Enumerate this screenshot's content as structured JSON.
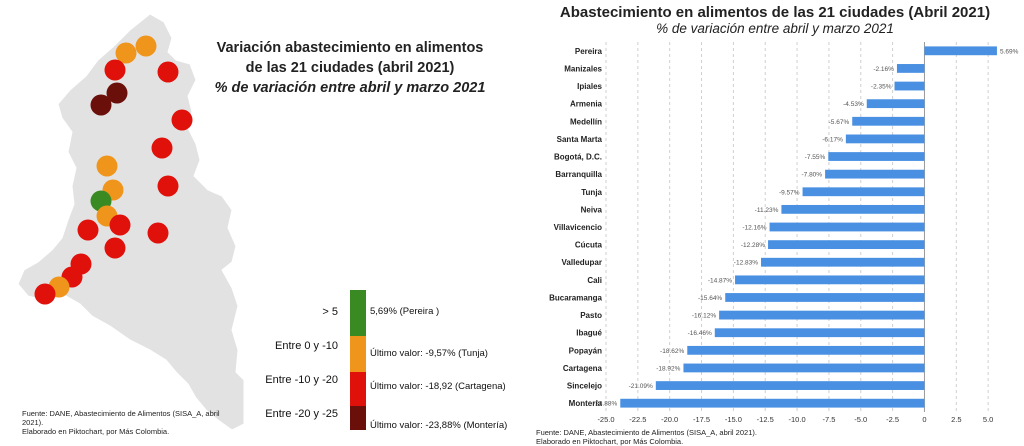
{
  "map": {
    "title_line1": "Variación abastecimiento en alimentos",
    "title_line2": "de las 21 ciudades (abril 2021)",
    "title_line3": "% de variación entre abril y marzo 2021",
    "legend": [
      {
        "range": "> 5",
        "color": "#3a8a23",
        "value": "5,69% (Pereira )"
      },
      {
        "range": "Entre 0 y -10",
        "color": "#f0951c",
        "value": "Último valor:  -9,57% (Tunja)"
      },
      {
        "range": "Entre -10 y -20",
        "color": "#e0100b",
        "value": "Último valor: -18,92 (Cartagena)"
      },
      {
        "range": "Entre -20 y -25",
        "color": "#6b0f0b",
        "value": "Último valor: -23,88% (Montería)"
      }
    ],
    "source_line1": "Fuente: DANE, Abastecimiento de Alimentos (SISA_A, abril",
    "source_line2": "2021).",
    "source_line3": "Elaborado en Piktochart, por Más Colombia.",
    "territory_color": "#e2e2e2",
    "city_dots": [
      {
        "category": 1
      },
      {
        "category": 1
      },
      {
        "category": 2
      },
      {
        "category": 2
      },
      {
        "category": 3
      },
      {
        "category": 3
      },
      {
        "category": 2
      },
      {
        "category": 2
      },
      {
        "category": 1
      },
      {
        "category": 2
      },
      {
        "category": 1
      },
      {
        "category": 0
      },
      {
        "category": 1
      },
      {
        "category": 2
      },
      {
        "category": 2
      },
      {
        "category": 2
      },
      {
        "category": 2
      },
      {
        "category": 2
      },
      {
        "category": 2
      },
      {
        "category": 1
      },
      {
        "category": 2
      }
    ]
  },
  "chart": {
    "source_line1": "Fuente: DANE, Abastecimiento de Alimentos (SISA_A, abril 2021).",
    "source_line2": "Elaborado en Piktochart, por Más Colombia.",
    "bar_color": "#4a90e2"
  },
  "chart_data": {
    "type": "bar",
    "orientation": "horizontal",
    "title": "Abastecimiento en alimentos de las 21 ciudades (Abril 2021)",
    "subtitle": "% de variación entre abril y marzo 2021",
    "categories": [
      "Pereira",
      "Manizales",
      "Ipiales",
      "Armenia",
      "Medellín",
      "Santa Marta",
      "Bogotá, D.C.",
      "Barranquilla",
      "Tunja",
      "Neiva",
      "Villavicencio",
      "Cúcuta",
      "Valledupar",
      "Cali",
      "Bucaramanga",
      "Pasto",
      "Ibagué",
      "Popayán",
      "Cartagena",
      "Sincelejo",
      "Montería"
    ],
    "values": [
      5.69,
      -2.16,
      -2.35,
      -4.53,
      -5.67,
      -6.17,
      -7.55,
      -7.8,
      -9.57,
      -11.23,
      -12.16,
      -12.28,
      -12.83,
      -14.87,
      -15.64,
      -16.12,
      -16.46,
      -18.62,
      -18.92,
      -21.09,
      -23.88
    ],
    "value_labels": [
      "5.69%",
      "-2.16%",
      "-2.35%",
      "-4.53%",
      "-5.67%",
      "-6.17%",
      "-7.55%",
      "-7.80%",
      "-9.57%",
      "-11.23%",
      "-12.16%",
      "-12.28%",
      "-12.83%",
      "-14.87%",
      "-15.64%",
      "-16.12%",
      "-16.46%",
      "-18.62%",
      "-18.92%",
      "-21.09%",
      "-23.88%"
    ],
    "xlim": [
      -25,
      7.5
    ],
    "x_ticks": [
      -25,
      -22.5,
      -20,
      -17.5,
      -15,
      -12.5,
      -10,
      -7.5,
      -5,
      -2.5,
      0,
      2.5,
      5
    ],
    "x_tick_labels": [
      "-25.0",
      "-22.5",
      "-20.0",
      "-17.5",
      "-15.0",
      "-12.5",
      "-10.0",
      "-7.5",
      "-5.0",
      "-2.5",
      "0",
      "2.5",
      "5.0"
    ],
    "grid": true
  }
}
